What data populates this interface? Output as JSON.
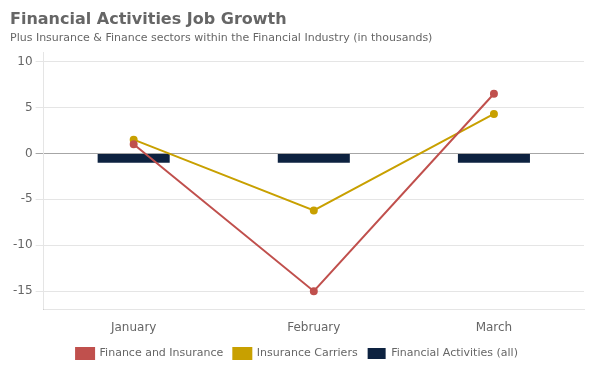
{
  "chart_data": {
    "type": "bar",
    "title": "Financial Activities Job Growth",
    "subtitle": "Plus Insurance & Finance sectors within the Financial Industry (in thousands)",
    "categories": [
      "January",
      "February",
      "March"
    ],
    "series": [
      {
        "name": "Financial Activities (all)",
        "type": "bar",
        "color": "#0d2240",
        "values": [
          -1,
          -1,
          -1
        ]
      },
      {
        "name": "Finance and Insurance",
        "type": "line",
        "color": "#c0504d",
        "values": [
          1.0,
          -15.0,
          6.5
        ]
      },
      {
        "name": "Insurance Carriers",
        "type": "line",
        "color": "#c8a000",
        "values": [
          1.5,
          -6.2,
          4.3
        ]
      }
    ],
    "ylim": [
      -17,
      11
    ],
    "yticks": [
      -15,
      -10,
      -5,
      0,
      5,
      10
    ],
    "grid": true,
    "legend": "bottom"
  }
}
